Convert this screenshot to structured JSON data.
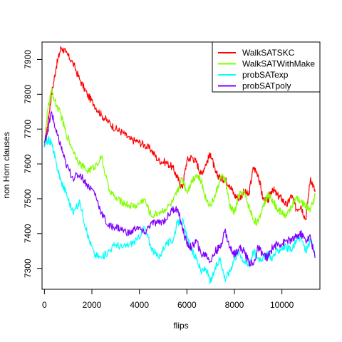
{
  "chart_data": {
    "type": "line",
    "title": "",
    "xlabel": "flips",
    "ylabel": "non Horn clauses",
    "xlim": [
      -100,
      11600
    ],
    "ylim": [
      7240,
      7950
    ],
    "xticks": [
      0,
      2000,
      4000,
      6000,
      8000,
      10000
    ],
    "yticks": [
      7300,
      7400,
      7500,
      7600,
      7700,
      7800,
      7900
    ],
    "grid": false,
    "legend_position": "top-right",
    "series": [
      {
        "name": "WalkSATSKC",
        "color": "#ff0000",
        "x": [
          0,
          150,
          300,
          500,
          700,
          900,
          1200,
          1500,
          1800,
          2100,
          2400,
          2700,
          3000,
          3300,
          3600,
          3900,
          4200,
          4500,
          4800,
          5100,
          5400,
          5600,
          5800,
          6000,
          6200,
          6400,
          6600,
          6800,
          7000,
          7200,
          7400,
          7600,
          7800,
          8000,
          8200,
          8400,
          8600,
          8800,
          9000,
          9200,
          9400,
          9600,
          9800,
          10000,
          10200,
          10400,
          10600,
          10800,
          11000,
          11200,
          11400
        ],
        "values": [
          7650,
          7720,
          7800,
          7880,
          7935,
          7920,
          7890,
          7840,
          7800,
          7770,
          7740,
          7720,
          7700,
          7690,
          7670,
          7665,
          7655,
          7640,
          7610,
          7605,
          7590,
          7560,
          7530,
          7610,
          7620,
          7605,
          7570,
          7600,
          7630,
          7575,
          7560,
          7555,
          7540,
          7510,
          7500,
          7520,
          7510,
          7590,
          7570,
          7500,
          7490,
          7530,
          7510,
          7500,
          7480,
          7510,
          7470,
          7480,
          7440,
          7560,
          7520
        ]
      },
      {
        "name": "WalkSATWithMake",
        "color": "#80ff00",
        "x": [
          0,
          150,
          300,
          500,
          700,
          900,
          1200,
          1500,
          1800,
          2100,
          2400,
          2700,
          3000,
          3300,
          3600,
          3900,
          4200,
          4500,
          4800,
          5100,
          5400,
          5600,
          5800,
          6000,
          6200,
          6400,
          6600,
          6800,
          7000,
          7200,
          7400,
          7600,
          7800,
          8000,
          8200,
          8400,
          8600,
          8800,
          9000,
          9200,
          9400,
          9600,
          9800,
          10000,
          10200,
          10400,
          10600,
          10800,
          11000,
          11200,
          11400
        ],
        "values": [
          7660,
          7760,
          7810,
          7770,
          7740,
          7690,
          7640,
          7600,
          7580,
          7590,
          7620,
          7530,
          7500,
          7490,
          7480,
          7480,
          7500,
          7450,
          7460,
          7470,
          7490,
          7520,
          7560,
          7520,
          7550,
          7570,
          7550,
          7500,
          7480,
          7510,
          7560,
          7560,
          7480,
          7460,
          7510,
          7520,
          7480,
          7440,
          7430,
          7480,
          7510,
          7500,
          7470,
          7460,
          7450,
          7480,
          7500,
          7490,
          7480,
          7470,
          7510
        ]
      },
      {
        "name": "probSATexp",
        "color": "#00ffff",
        "x": [
          0,
          150,
          300,
          500,
          700,
          900,
          1200,
          1500,
          1800,
          2100,
          2400,
          2700,
          3000,
          3300,
          3600,
          3900,
          4200,
          4500,
          4800,
          5100,
          5400,
          5600,
          5800,
          6000,
          6200,
          6400,
          6600,
          6800,
          7000,
          7200,
          7400,
          7600,
          7800,
          8000,
          8200,
          8400,
          8600,
          8800,
          9000,
          9200,
          9400,
          9600,
          9800,
          10000,
          10200,
          10400,
          10600,
          10800,
          11000,
          11200,
          11400
        ],
        "values": [
          7650,
          7670,
          7660,
          7600,
          7550,
          7520,
          7460,
          7490,
          7400,
          7340,
          7330,
          7350,
          7370,
          7360,
          7370,
          7380,
          7420,
          7360,
          7330,
          7370,
          7380,
          7430,
          7440,
          7390,
          7350,
          7330,
          7290,
          7300,
          7260,
          7300,
          7330,
          7270,
          7290,
          7330,
          7350,
          7320,
          7310,
          7350,
          7330,
          7330,
          7340,
          7330,
          7350,
          7360,
          7360,
          7350,
          7380,
          7390,
          7350,
          7380,
          7340
        ]
      },
      {
        "name": "probSATpoly",
        "color": "#8000ff",
        "x": [
          0,
          150,
          300,
          500,
          700,
          900,
          1200,
          1500,
          1800,
          2100,
          2400,
          2700,
          3000,
          3300,
          3600,
          3900,
          4200,
          4500,
          4800,
          5100,
          5400,
          5600,
          5800,
          6000,
          6200,
          6400,
          6600,
          6800,
          7000,
          7200,
          7400,
          7600,
          7800,
          8000,
          8200,
          8400,
          8600,
          8800,
          9000,
          9200,
          9400,
          9600,
          9800,
          10000,
          10200,
          10400,
          10600,
          10800,
          11000,
          11200,
          11400
        ],
        "values": [
          7660,
          7700,
          7750,
          7690,
          7650,
          7600,
          7560,
          7570,
          7540,
          7520,
          7460,
          7420,
          7420,
          7410,
          7400,
          7420,
          7400,
          7430,
          7430,
          7440,
          7470,
          7470,
          7420,
          7370,
          7360,
          7380,
          7340,
          7340,
          7320,
          7350,
          7360,
          7410,
          7360,
          7340,
          7360,
          7350,
          7320,
          7310,
          7360,
          7340,
          7330,
          7360,
          7370,
          7370,
          7380,
          7380,
          7390,
          7400,
          7380,
          7390,
          7330
        ]
      }
    ]
  }
}
